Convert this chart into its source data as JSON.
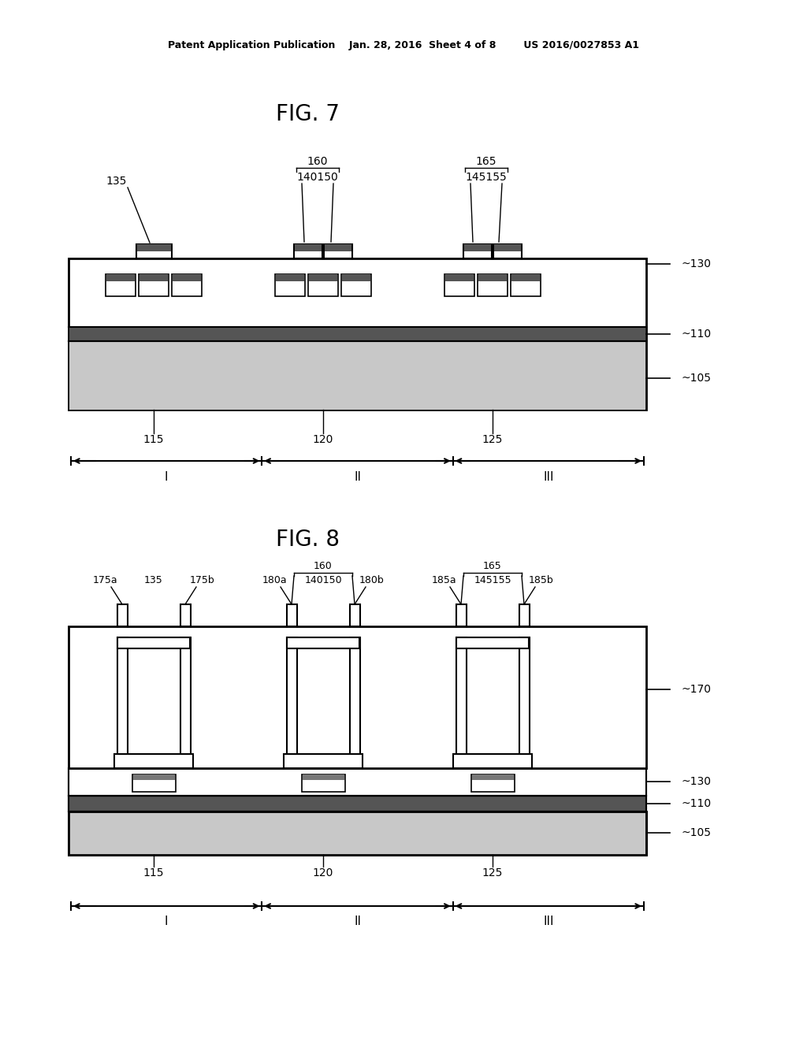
{
  "bg_color": "#ffffff",
  "header": "Patent Application Publication    Jan. 28, 2016  Sheet 4 of 8        US 2016/0027853 A1",
  "fig7_title": "FIG. 7",
  "fig8_title": "FIG. 8"
}
